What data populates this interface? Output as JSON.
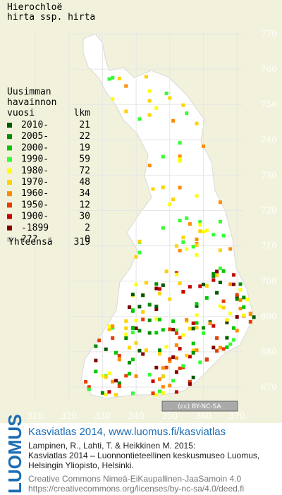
{
  "title": [
    "Hierochloë",
    "hirta ssp. hirta"
  ],
  "legend": {
    "heading": [
      "Uusimman",
      "havainnon",
      "vuosi"
    ],
    "count_heading": "lkm",
    "rows": [
      {
        "label": "2010-",
        "count": 21,
        "color": "#005a00"
      },
      {
        "label": "2005-",
        "count": 22,
        "color": "#008c00"
      },
      {
        "label": "2000-",
        "count": 19,
        "color": "#00c800"
      },
      {
        "label": "1990-",
        "count": 59,
        "color": "#32ff32"
      },
      {
        "label": "1980-",
        "count": 72,
        "color": "#ffff00"
      },
      {
        "label": "1970-",
        "count": 48,
        "color": "#ffd200"
      },
      {
        "label": "1960-",
        "count": 34,
        "color": "#ff8c00"
      },
      {
        "label": "1950-",
        "count": 12,
        "color": "#e63c00"
      },
      {
        "label": "1900-",
        "count": 30,
        "color": "#c80000"
      },
      {
        "label": "-1899",
        "count": 2,
        "color": "#820000"
      },
      {
        "label": "???",
        "count": 0,
        "color": "#c8c8c8"
      }
    ],
    "total": {
      "label": "Yhteensä",
      "count": 319
    }
  },
  "map": {
    "y_labels": [
      770,
      760,
      750,
      740,
      730,
      720,
      710,
      700,
      690,
      680,
      670
    ],
    "x_labels": [
      310,
      320,
      330,
      340,
      350,
      360,
      370
    ]
  },
  "license_badge": "(cc) BY-NC-SA",
  "footer": {
    "logo": "LUOMUS",
    "heading": "Kasviatlas 2014, www.luomus.fi/kasviatlas",
    "citation": [
      "Lampinen, R., Lahti, T. & Heikkinen M. 2015:",
      "Kasviatlas 2014 – Luonnontieteellinen keskusmuseo Luomus,",
      "Helsingin Yliopisto, Helsinki."
    ],
    "license": [
      "Creative Commons Nimeä-EiKaupallinen-JaaSamoin 4.0",
      "https://creativecommons.org/licenses/by-nc-sa/4.0/deed.fi"
    ]
  }
}
